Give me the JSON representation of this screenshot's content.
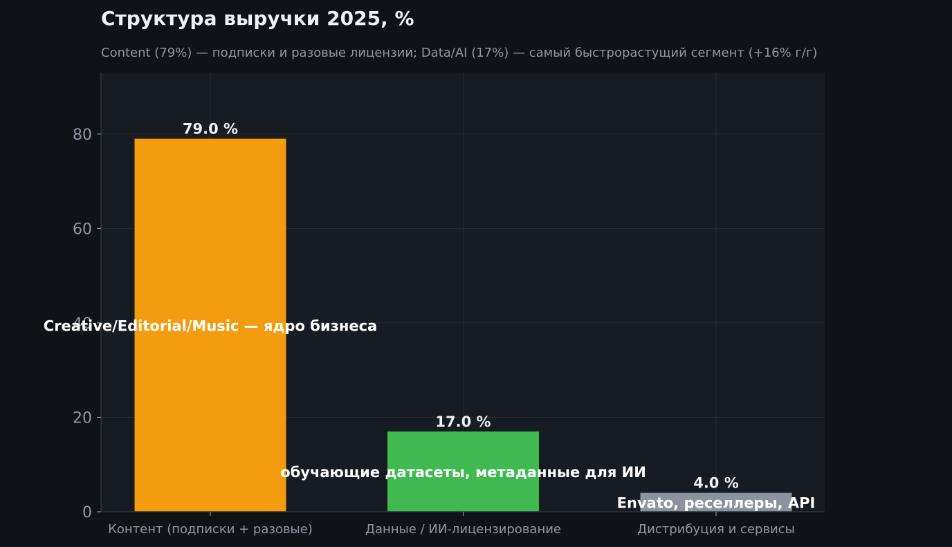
{
  "page": {
    "title": "Структура выручки 2025, %",
    "subtitle": "Content (79%) — подписки и разовые лицензии; Data/AI (17%) — самый быстрорастущий сегмент (+16% г/г)"
  },
  "colors": {
    "background": "#0f1317",
    "plot_background": "#171b22",
    "grid": "#262c35",
    "axis_text": "#8f98a3",
    "label_text": "#eef1f5"
  },
  "chart_data": {
    "type": "bar",
    "title": "Структура выручки 2025, %",
    "subtitle": "Content (79%) — подписки и разовые лицензии; Data/AI (17%) — самый быстрорастущий сегмент (+16% г/г)",
    "xlabel": "",
    "ylabel": "",
    "categories": [
      "Контент (подписки + разовые)",
      "Данные / ИИ-лицензирование",
      "Дистрибуция и сервисы"
    ],
    "values": [
      79.0,
      17.0,
      4.0
    ],
    "value_labels": [
      "79.0 %",
      "17.0 %",
      "4.0 %"
    ],
    "bar_colors": [
      "#f39c0f",
      "#3fb950",
      "#8b949e"
    ],
    "annotations": [
      "Creative/Editorial/Music — ядро бизнеса",
      "обучающие датасеты, метаданные для ИИ",
      "Envato, реселлеры, API"
    ],
    "ylim": [
      0,
      93
    ],
    "yticks": [
      0,
      20,
      40,
      60,
      80
    ],
    "grid": true,
    "legend": "none"
  }
}
